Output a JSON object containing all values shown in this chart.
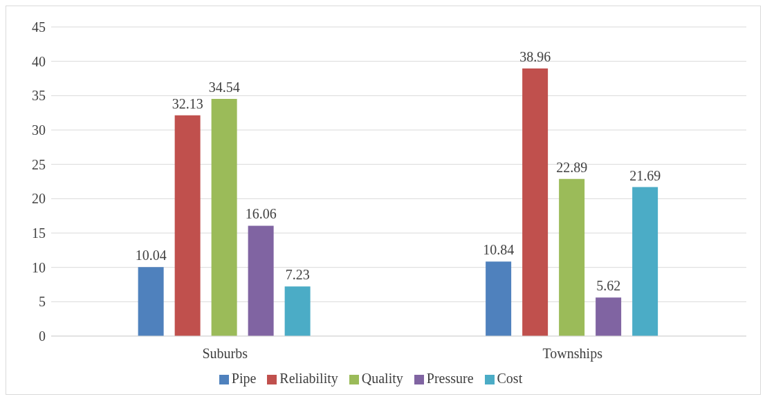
{
  "chart_data": {
    "type": "bar",
    "categories": [
      "Suburbs",
      "Townships"
    ],
    "series": [
      {
        "name": "Pipe",
        "color": "#4f81bd",
        "values": [
          10.04,
          10.84
        ]
      },
      {
        "name": "Reliability",
        "color": "#c0504d",
        "values": [
          32.13,
          38.96
        ]
      },
      {
        "name": "Quality",
        "color": "#9bbb59",
        "values": [
          34.54,
          22.89
        ]
      },
      {
        "name": "Pressure",
        "color": "#8064a2",
        "values": [
          16.06,
          5.62
        ]
      },
      {
        "name": "Cost",
        "color": "#4bacc6",
        "values": [
          7.23,
          21.69
        ]
      }
    ],
    "ylim": [
      0,
      45
    ],
    "yticks": [
      0,
      5,
      10,
      15,
      20,
      25,
      30,
      35,
      40,
      45
    ],
    "grid": "y",
    "legend": "bottom",
    "data_labels": true
  }
}
